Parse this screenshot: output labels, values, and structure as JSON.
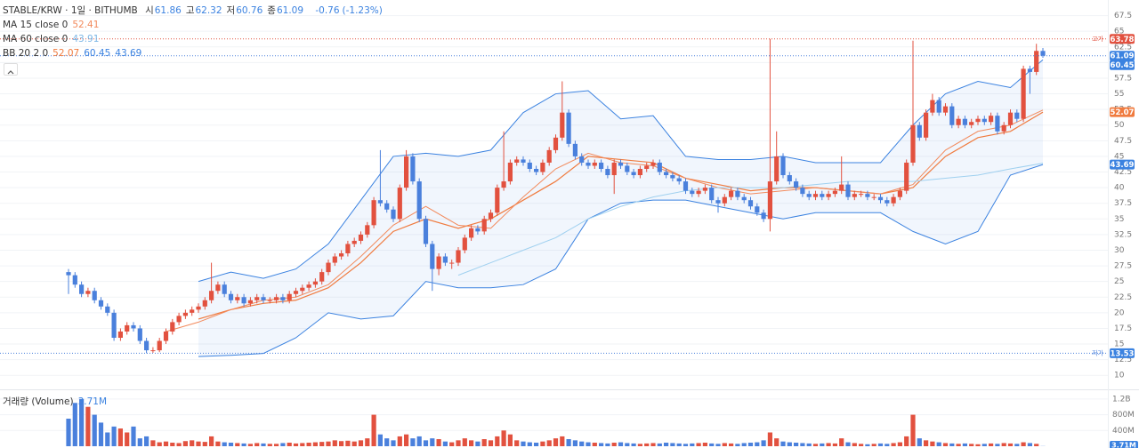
{
  "chart_data": {
    "type": "candlestick",
    "header": {
      "symbol": "STABLE/KRW · 1일 · BITHUMB",
      "ohlc_labels": [
        "시",
        "고",
        "저",
        "종"
      ],
      "change": -0.76,
      "change_pct": "(-1.23%)"
    },
    "up_color": "#e2513f",
    "down_color": "#4a80dc",
    "open": [
      26.5,
      26,
      24.5,
      23,
      23.5,
      22,
      21,
      20,
      16,
      17,
      18,
      17.5,
      15.5,
      14,
      14,
      15.5,
      17,
      18.5,
      19.5,
      20,
      20.5,
      21,
      22,
      23.5,
      24.5,
      23,
      22,
      22.5,
      21.5,
      22,
      22.5,
      22,
      22,
      22.5,
      22,
      23,
      23.5,
      24,
      24.5,
      25,
      26.5,
      28,
      29,
      29.5,
      31,
      31.5,
      32.5,
      34,
      38,
      37.5,
      36.5,
      35,
      40,
      45,
      41,
      35,
      31,
      27,
      29,
      28,
      28,
      30,
      32,
      33.5,
      33,
      35,
      36,
      40,
      41,
      44,
      44.5,
      44,
      43,
      42.5,
      44,
      46,
      48,
      52,
      47,
      45,
      44,
      43.5,
      44,
      43,
      42,
      44,
      43.5,
      42.5,
      42,
      43,
      43.5,
      44,
      42.5,
      42,
      41.5,
      41,
      39.5,
      39,
      39.5,
      40,
      38,
      37.5,
      38.5,
      39.5,
      38.5,
      38,
      37,
      36,
      35,
      41,
      45,
      42,
      41,
      40,
      39,
      38.5,
      39,
      38.5,
      39,
      39.5,
      40.5,
      38.5,
      39,
      39,
      38.5,
      38.5,
      38,
      37.5,
      38.5,
      39.5,
      44,
      50,
      48,
      52,
      54,
      52,
      53,
      50,
      51,
      50,
      50.5,
      51,
      50.5,
      51.5,
      49,
      50,
      52,
      51,
      59,
      58.5,
      61.86
    ],
    "high": [
      27,
      26.5,
      25,
      24,
      24,
      22.5,
      21.5,
      20.5,
      17.5,
      18.5,
      18.5,
      18,
      16,
      14.5,
      16,
      17.5,
      19,
      20,
      20.5,
      21,
      21.5,
      22.5,
      28,
      25,
      25,
      23.5,
      23,
      23,
      22.5,
      23,
      23,
      22.5,
      23,
      23,
      23.5,
      24,
      24.5,
      25,
      25.5,
      27,
      28.5,
      29.5,
      30,
      31.5,
      32,
      33,
      34.5,
      38.5,
      46,
      38,
      37,
      40.5,
      46,
      45.5,
      41.5,
      35.5,
      31.5,
      29.5,
      29.5,
      28.5,
      30.5,
      32.5,
      34,
      34,
      35.5,
      36.5,
      40.5,
      49,
      44.5,
      45,
      45,
      44.5,
      43.5,
      44.5,
      46.5,
      48.5,
      57,
      52.5,
      47.5,
      45.5,
      44.5,
      44.5,
      44.5,
      43.5,
      44.5,
      44.5,
      44,
      43,
      43.5,
      44,
      44.5,
      44.5,
      43,
      42.5,
      42,
      41.5,
      40,
      40,
      40.5,
      40.5,
      38.5,
      39,
      40,
      40,
      39,
      38.5,
      37.5,
      36.5,
      63.78,
      49,
      45.5,
      42.5,
      41.5,
      40.5,
      39.5,
      39.5,
      39.5,
      39.5,
      40,
      45,
      41,
      39.5,
      39.5,
      39.5,
      39,
      39,
      38.5,
      39,
      40,
      44.5,
      63.5,
      50.5,
      52.5,
      55,
      54.5,
      53.5,
      53.5,
      51.5,
      51.5,
      51,
      51.5,
      51.5,
      52,
      52,
      50.5,
      52.5,
      52.5,
      59.5,
      59.5,
      63,
      62.32
    ],
    "low": [
      23,
      24,
      22.5,
      22.5,
      21.5,
      20.5,
      19.5,
      15.5,
      15.5,
      16.5,
      17,
      15,
      13.53,
      13.6,
      13.7,
      15,
      16.5,
      18,
      19,
      19.5,
      20,
      20.5,
      21.5,
      23,
      22.5,
      21.5,
      21.5,
      21,
      21,
      21.5,
      21.5,
      21.5,
      21.5,
      21.5,
      21.5,
      22.5,
      23,
      23.5,
      24,
      24.5,
      26,
      27.5,
      28.5,
      29,
      30.5,
      31,
      32,
      33.5,
      37,
      36,
      34.5,
      34.5,
      39.5,
      40.5,
      34.5,
      30.5,
      23.5,
      26,
      27.5,
      27,
      27.5,
      29.5,
      31.5,
      32.5,
      32.5,
      34.5,
      35.5,
      39.5,
      40.5,
      43.5,
      43.5,
      42.5,
      42,
      42,
      43.5,
      45.5,
      47.5,
      46.5,
      44.5,
      43.5,
      43,
      43,
      42.5,
      41.5,
      39,
      43,
      42,
      41.5,
      41.5,
      42.5,
      43,
      42,
      41.5,
      41,
      40.5,
      39,
      38.5,
      38.5,
      39,
      37.5,
      36,
      37,
      38,
      38,
      37.5,
      36.5,
      35.5,
      34.5,
      33,
      40.5,
      41.5,
      40.5,
      39.5,
      38.5,
      38,
      38,
      38,
      38,
      38.5,
      39,
      38,
      38,
      38.5,
      38,
      38,
      37.5,
      37,
      37,
      38,
      39,
      43.5,
      47.5,
      47.5,
      51.5,
      51.5,
      51.5,
      49.5,
      49.5,
      49.5,
      49.5,
      50,
      50,
      50,
      48.5,
      48.5,
      49.5,
      50.5,
      50.5,
      55,
      58,
      60.76
    ],
    "close": [
      26,
      24.5,
      23,
      23.5,
      22,
      21,
      20,
      16,
      17,
      18,
      17.5,
      15.5,
      14,
      14,
      15.5,
      17,
      18.5,
      19.5,
      20,
      20.5,
      21,
      22,
      23.5,
      24.5,
      23,
      22,
      22.5,
      21.5,
      22,
      22.5,
      22,
      22,
      22.5,
      22,
      23,
      23.5,
      24,
      24.5,
      25,
      26.5,
      28,
      29,
      29.5,
      31,
      31.5,
      32.5,
      34,
      38,
      37.5,
      36.5,
      35,
      40,
      45,
      41,
      35,
      31,
      27,
      29,
      28,
      28,
      30,
      32,
      33.5,
      33,
      35,
      36,
      40,
      41,
      44,
      44.5,
      44,
      43,
      42.5,
      44,
      46,
      48,
      52,
      47,
      45,
      44,
      43.5,
      44,
      43,
      42,
      44,
      43.5,
      42.5,
      42,
      43,
      43.5,
      44,
      42.5,
      42,
      41.5,
      41,
      39.5,
      39,
      39.5,
      40,
      38,
      37.5,
      38.5,
      39.5,
      38.5,
      38,
      37,
      36,
      35,
      41,
      45,
      42,
      41,
      40,
      39,
      38.5,
      39,
      38.5,
      39,
      39.5,
      40.5,
      38.5,
      39,
      39,
      38.5,
      38.5,
      38,
      37.5,
      38.5,
      39.5,
      44,
      50,
      48,
      52,
      54,
      52,
      53,
      50,
      51,
      50,
      50.5,
      51,
      50.5,
      51.5,
      49,
      50,
      52,
      51,
      59,
      58.5,
      61.86,
      61.09
    ],
    "volume": [
      700000000.0,
      1100000000.0,
      1200000000.0,
      1000000000.0,
      800000000.0,
      600000000.0,
      350000000.0,
      500000000.0,
      450000000.0,
      350000000.0,
      500000000.0,
      200000000.0,
      250000000.0,
      150000000.0,
      100000000.0,
      120000000.0,
      90000000.0,
      80000000.0,
      130000000.0,
      150000000.0,
      120000000.0,
      110000000.0,
      250000000.0,
      120000000.0,
      100000000.0,
      90000000.0,
      80000000.0,
      70000000.0,
      60000000.0,
      80000000.0,
      70000000.0,
      60000000.0,
      60000000.0,
      80000000.0,
      90000000.0,
      70000000.0,
      80000000.0,
      90000000.0,
      100000000.0,
      110000000.0,
      120000000.0,
      150000000.0,
      130000000.0,
      140000000.0,
      120000000.0,
      150000000.0,
      200000000.0,
      800000000.0,
      300000000.0,
      200000000.0,
      150000000.0,
      250000000.0,
      300000000.0,
      200000000.0,
      250000000.0,
      150000000.0,
      200000000.0,
      180000000.0,
      120000000.0,
      100000000.0,
      150000000.0,
      200000000.0,
      150000000.0,
      120000000.0,
      180000000.0,
      150000000.0,
      250000000.0,
      400000000.0,
      300000000.0,
      150000000.0,
      120000000.0,
      100000000.0,
      90000000.0,
      120000000.0,
      150000000.0,
      200000000.0,
      250000000.0,
      180000000.0,
      150000000.0,
      120000000.0,
      100000000.0,
      90000000.0,
      80000000.0,
      70000000.0,
      90000000.0,
      100000000.0,
      80000000.0,
      70000000.0,
      60000000.0,
      70000000.0,
      80000000.0,
      70000000.0,
      90000000.0,
      80000000.0,
      70000000.0,
      60000000.0,
      70000000.0,
      80000000.0,
      90000000.0,
      70000000.0,
      60000000.0,
      80000000.0,
      70000000.0,
      60000000.0,
      80000000.0,
      90000000.0,
      100000000.0,
      150000000.0,
      350000000.0,
      200000000.0,
      120000000.0,
      100000000.0,
      90000000.0,
      80000000.0,
      70000000.0,
      60000000.0,
      70000000.0,
      80000000.0,
      70000000.0,
      200000000.0,
      100000000.0,
      80000000.0,
      60000000.0,
      50000000.0,
      60000000.0,
      70000000.0,
      60000000.0,
      80000000.0,
      100000000.0,
      250000000.0,
      800000000.0,
      200000000.0,
      150000000.0,
      120000000.0,
      100000000.0,
      80000000.0,
      70000000.0,
      60000000.0,
      70000000.0,
      60000000.0,
      50000000.0,
      60000000.0,
      70000000.0,
      60000000.0,
      80000000.0,
      70000000.0,
      60000000.0,
      100000000.0,
      80000000.0,
      60000000.0,
      3710000.0
    ],
    "volume_label": "거래량 (Volume)",
    "volume_value_label": "3.71M",
    "ylim": [
      7.9,
      70
    ],
    "yticks": [
      10,
      12.5,
      15,
      17.5,
      20,
      22.5,
      25,
      27.5,
      30,
      32.5,
      35,
      37.5,
      40,
      42.5,
      45,
      47.5,
      50,
      52.5,
      55,
      57.5,
      60,
      62.5,
      65,
      67.5
    ],
    "vlim": [
      0,
      1400000000
    ],
    "vticks": [
      {
        "value": 400000000,
        "label": "400M"
      },
      {
        "value": 800000000,
        "label": "800M"
      },
      {
        "value": 1200000000,
        "label": "1.2B"
      }
    ],
    "high_label": "고가",
    "low_label": "저가",
    "ma": [
      {
        "name": "MA 15 close 0",
        "color": "#f28a5c",
        "x": [
          15,
          20,
          25,
          30,
          35,
          40,
          45,
          50,
          55,
          60,
          65,
          70,
          75,
          80,
          85,
          90,
          95,
          100,
          105,
          110,
          115,
          120,
          125,
          130,
          135,
          140,
          145,
          150
        ],
        "values": [
          17,
          18.5,
          20.5,
          22,
          22.5,
          24.5,
          29,
          34,
          37,
          34,
          33.5,
          38.5,
          43,
          45.5,
          44,
          43.5,
          41.5,
          40,
          39,
          39.5,
          40,
          39.5,
          39,
          40.5,
          46,
          49,
          50,
          52.41
        ]
      },
      {
        "name": "MA 60 close 0",
        "color": "#9fd0ef",
        "x": [
          60,
          65,
          70,
          75,
          80,
          85,
          90,
          95,
          100,
          105,
          110,
          115,
          120,
          125,
          130,
          135,
          140,
          145,
          150
        ],
        "values": [
          26,
          28,
          30,
          32,
          35,
          37,
          38.5,
          39.5,
          40,
          40,
          40,
          40.5,
          41,
          41,
          41,
          41.5,
          42,
          43,
          43.91
        ]
      }
    ],
    "bb": {
      "name": "BB 20 2 0",
      "x": [
        20,
        25,
        30,
        35,
        40,
        45,
        50,
        55,
        60,
        65,
        70,
        75,
        80,
        85,
        90,
        95,
        100,
        105,
        110,
        115,
        120,
        125,
        130,
        135,
        140,
        145,
        150
      ],
      "basis": {
        "color": "#f07b3f",
        "values": [
          19,
          20.5,
          21.5,
          22,
          24,
          28,
          33,
          35,
          33.5,
          35,
          38,
          41,
          45,
          44.5,
          44,
          41.5,
          40.5,
          39.5,
          40,
          40,
          39.5,
          39,
          40,
          45,
          48,
          49,
          52.07
        ]
      },
      "upper": {
        "color": "#3b82e0",
        "values": [
          25,
          26.5,
          25.5,
          27,
          31,
          38,
          45,
          45.5,
          45,
          46,
          52,
          55,
          55.5,
          51,
          51.5,
          45,
          44.5,
          44.5,
          45,
          44,
          44,
          44,
          50,
          55,
          57,
          56,
          60.45
        ]
      },
      "lower": {
        "color": "#3b82e0",
        "values": [
          13,
          13.2,
          13.5,
          16,
          20,
          19,
          19.5,
          25,
          24,
          24,
          24.5,
          27,
          35,
          37.5,
          38,
          38,
          37,
          36,
          35,
          36,
          36,
          36,
          33,
          31,
          33,
          42,
          43.69
        ]
      }
    }
  }
}
